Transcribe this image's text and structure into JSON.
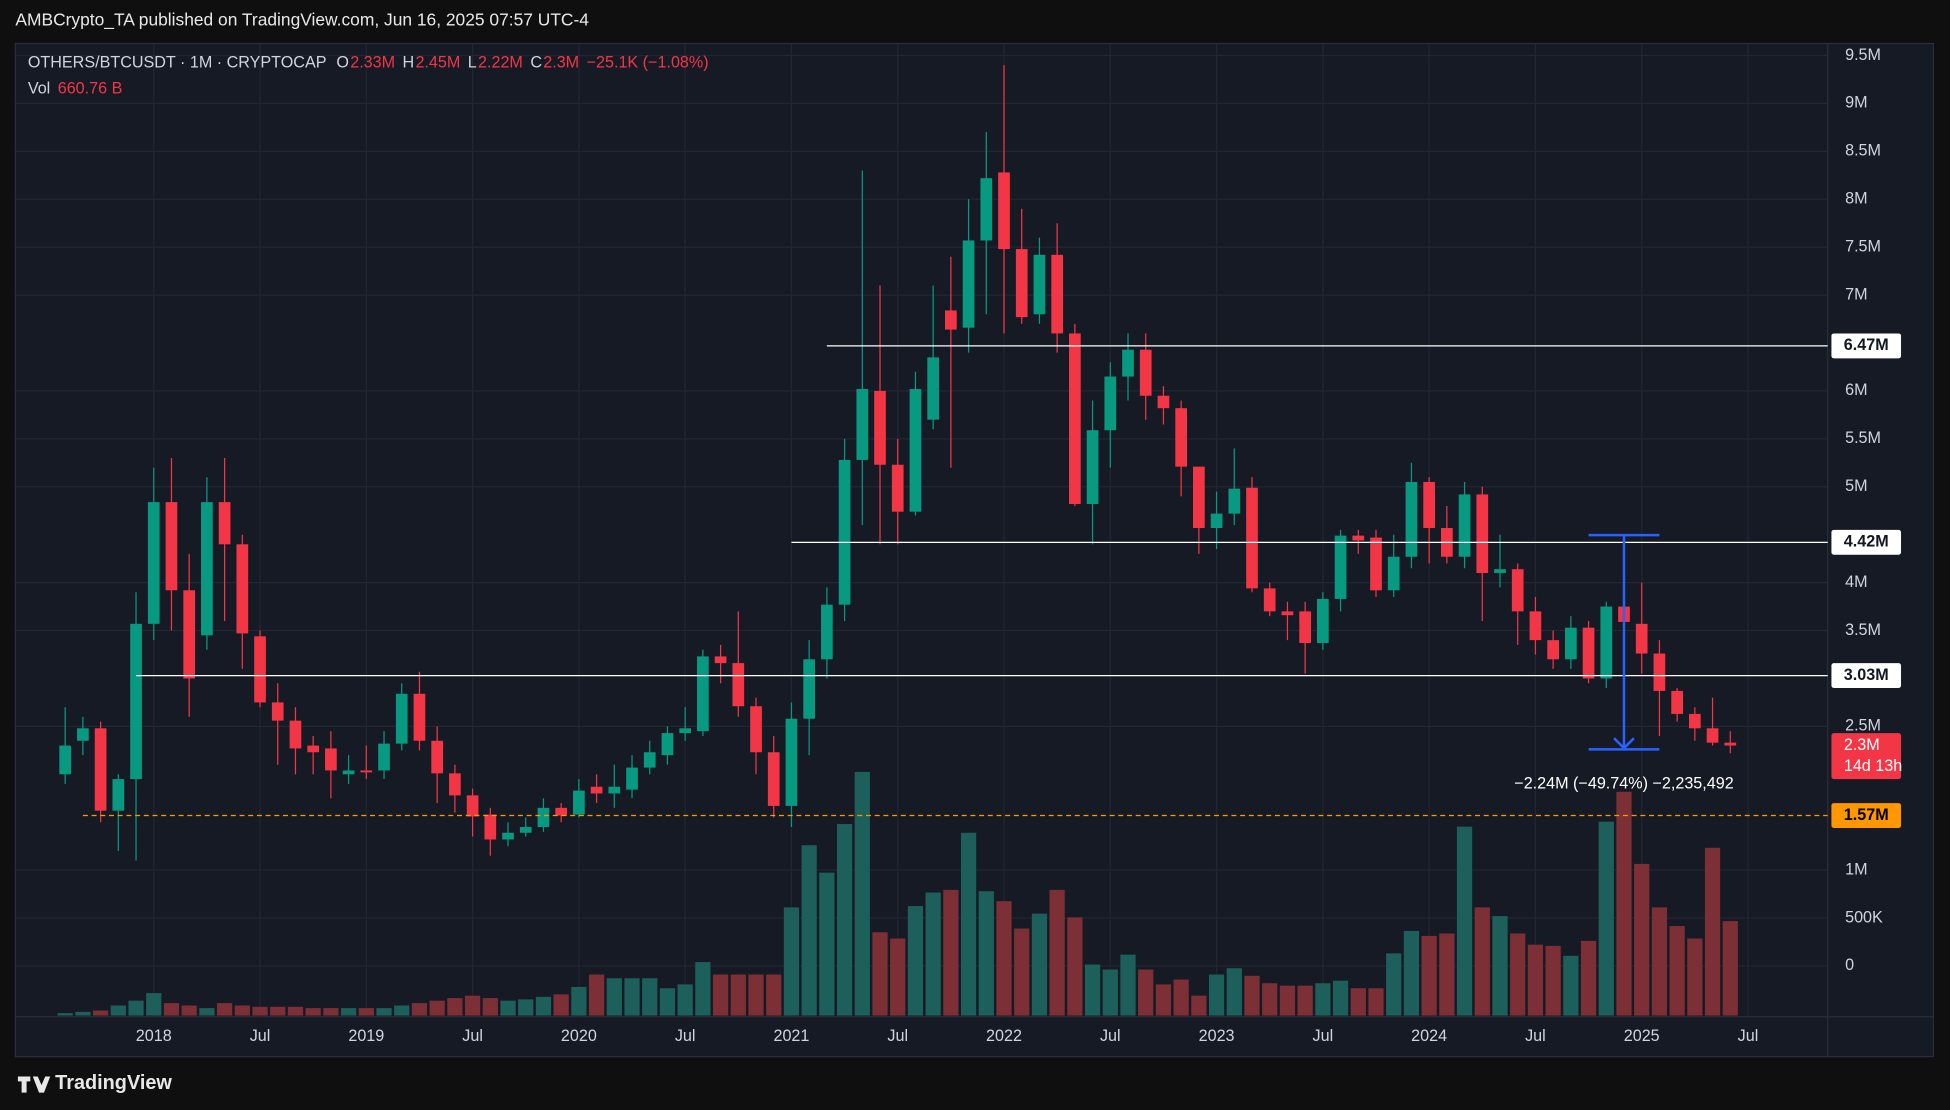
{
  "chart_data": {
    "type": "candlestick",
    "header": "AMBCrypto_TA published on TradingView.com, Jun 16, 2025 07:57 UTC-4",
    "symbol": "OTHERS/BTCUSDT · 1M · CRYPTOCAP",
    "ohlc_legend": [
      {
        "key": "O",
        "value": "2.33M"
      },
      {
        "key": "H",
        "value": "2.45M"
      },
      {
        "key": "L",
        "value": "2.22M"
      },
      {
        "key": "C",
        "value": "2.3M"
      }
    ],
    "change": "−25.1K (−1.08%)",
    "volume_legend": {
      "key": "Vol",
      "value": "660.76 B"
    },
    "open": [
      2.0,
      2.35,
      2.48,
      1.62,
      1.95,
      3.57,
      4.84,
      3.92,
      3.45,
      4.84,
      4.4,
      3.44,
      2.75,
      2.56,
      2.3,
      2.27,
      2.0,
      2.04,
      2.04,
      2.32,
      2.84,
      2.35,
      2.01,
      1.78,
      1.58,
      1.32,
      1.39,
      1.45,
      1.65,
      1.58,
      1.87,
      1.8,
      1.84,
      2.07,
      2.2,
      2.43,
      2.45,
      3.23,
      3.16,
      2.71,
      2.23,
      1.67,
      2.58,
      3.2,
      3.77,
      5.28,
      6.0,
      5.23,
      4.74,
      5.7,
      6.84,
      6.66,
      7.57,
      8.28,
      7.48,
      6.8,
      7.42,
      6.6,
      4.82,
      5.59,
      6.15,
      6.43,
      5.95,
      5.82,
      5.21,
      4.57,
      4.72,
      4.99,
      3.94,
      3.7,
      3.7,
      3.37,
      3.83,
      4.49,
      4.47,
      3.92,
      4.27,
      5.05,
      4.57,
      4.27,
      4.92,
      4.1,
      4.14,
      3.7,
      3.4,
      3.2,
      3.53,
      3.0,
      3.75,
      3.57,
      3.26,
      2.87,
      2.63,
      2.48,
      2.33
    ],
    "high": [
      2.7,
      2.6,
      2.55,
      2.0,
      3.9,
      5.2,
      5.3,
      4.3,
      5.1,
      5.3,
      4.5,
      3.5,
      2.95,
      2.7,
      2.4,
      2.45,
      2.2,
      2.3,
      2.45,
      2.95,
      3.07,
      2.5,
      2.1,
      1.85,
      1.65,
      1.5,
      1.55,
      1.75,
      1.7,
      1.95,
      2.0,
      2.1,
      2.2,
      2.35,
      2.5,
      2.7,
      3.3,
      3.35,
      3.7,
      2.8,
      2.4,
      2.75,
      3.4,
      3.95,
      5.5,
      8.3,
      7.1,
      5.5,
      6.2,
      7.1,
      7.4,
      8.0,
      8.7,
      9.4,
      7.9,
      7.6,
      7.75,
      6.7,
      5.9,
      6.3,
      6.6,
      6.6,
      6.05,
      5.9,
      5.2,
      4.95,
      5.4,
      5.1,
      4.0,
      3.8,
      3.8,
      3.9,
      4.55,
      4.55,
      4.55,
      4.5,
      5.25,
      5.1,
      4.8,
      5.05,
      5.0,
      4.5,
      4.2,
      3.85,
      3.5,
      3.65,
      3.6,
      3.8,
      3.8,
      4.0,
      3.4,
      2.9,
      2.7,
      2.8,
      2.45
    ],
    "low": [
      1.9,
      2.2,
      1.5,
      1.2,
      1.1,
      3.4,
      3.5,
      2.6,
      3.3,
      3.6,
      3.1,
      2.7,
      2.1,
      2.0,
      2.0,
      1.75,
      1.9,
      1.95,
      1.95,
      2.25,
      2.25,
      1.7,
      1.6,
      1.35,
      1.15,
      1.25,
      1.35,
      1.4,
      1.5,
      1.55,
      1.7,
      1.65,
      1.75,
      2.0,
      2.1,
      2.35,
      2.4,
      2.95,
      2.6,
      2.0,
      1.55,
      1.45,
      2.2,
      3.0,
      3.6,
      4.6,
      4.4,
      4.4,
      4.7,
      5.6,
      5.2,
      6.4,
      6.8,
      6.6,
      6.7,
      6.7,
      6.4,
      4.8,
      4.4,
      5.2,
      5.9,
      5.7,
      5.65,
      4.9,
      4.3,
      4.35,
      4.6,
      3.9,
      3.65,
      3.4,
      3.05,
      3.3,
      3.7,
      4.3,
      3.85,
      3.85,
      4.15,
      4.2,
      4.2,
      4.15,
      3.6,
      3.95,
      3.35,
      3.25,
      3.1,
      3.1,
      2.95,
      2.9,
      3.45,
      3.05,
      2.4,
      2.55,
      2.35,
      2.3,
      2.22
    ],
    "close": [
      2.3,
      2.48,
      1.62,
      1.95,
      3.57,
      4.84,
      3.92,
      3.0,
      4.84,
      4.4,
      3.47,
      2.75,
      2.56,
      2.27,
      2.23,
      2.04,
      2.04,
      2.02,
      2.32,
      2.84,
      2.35,
      2.01,
      1.78,
      1.56,
      1.32,
      1.39,
      1.45,
      1.65,
      1.57,
      1.83,
      1.8,
      1.87,
      2.07,
      2.23,
      2.43,
      2.48,
      3.23,
      3.16,
      2.71,
      2.23,
      1.67,
      2.58,
      3.2,
      3.77,
      5.28,
      6.02,
      5.23,
      4.74,
      6.02,
      6.35,
      6.64,
      7.57,
      8.22,
      7.48,
      6.77,
      7.42,
      6.6,
      4.82,
      5.59,
      6.15,
      6.43,
      5.95,
      5.82,
      5.21,
      4.57,
      4.72,
      4.98,
      3.94,
      3.7,
      3.66,
      3.37,
      3.83,
      4.49,
      4.44,
      3.92,
      4.27,
      5.05,
      4.57,
      4.27,
      4.92,
      4.1,
      4.14,
      3.7,
      3.4,
      3.2,
      3.53,
      3.0,
      3.75,
      3.59,
      3.26,
      2.87,
      2.63,
      2.48,
      2.33,
      2.3
    ],
    "volume": [
      17,
      26,
      35,
      70,
      104,
      157,
      87,
      70,
      52,
      87,
      70,
      61,
      61,
      61,
      52,
      52,
      52,
      52,
      52,
      70,
      87,
      104,
      122,
      139,
      122,
      104,
      113,
      131,
      148,
      200,
      287,
      261,
      261,
      261,
      191,
      218,
      374,
      287,
      287,
      287,
      287,
      757,
      1192,
      1000,
      1340,
      1705,
      583,
      539,
      766,
      861,
      879,
      1279,
      870,
      800,
      609,
      713,
      879,
      687,
      357,
      322,
      426,
      322,
      218,
      252,
      139,
      287,
      331,
      278,
      226,
      209,
      209,
      226,
      244,
      191,
      191,
      435,
      592,
      557,
      574,
      1322,
      757,
      696,
      574,
      496,
      487,
      418,
      522,
      1357,
      1566,
      1061,
      757,
      626,
      539,
      1174,
      660.76
    ],
    "up_color": "#089981",
    "down_color": "#f23645",
    "volume_up_color": "#1d5f5b",
    "volume_down_color": "#7c2f35",
    "xlim": [
      -2.81,
      99.5
    ],
    "xticks": [
      {
        "value": 5,
        "label": "2018"
      },
      {
        "value": 11,
        "label": "Jul"
      },
      {
        "value": 17,
        "label": "2019"
      },
      {
        "value": 23,
        "label": "Jul"
      },
      {
        "value": 29,
        "label": "2020"
      },
      {
        "value": 35,
        "label": "Jul"
      },
      {
        "value": 41,
        "label": "2021"
      },
      {
        "value": 47,
        "label": "Jul"
      },
      {
        "value": 53,
        "label": "2022"
      },
      {
        "value": 59,
        "label": "Jul"
      },
      {
        "value": 65,
        "label": "2023"
      },
      {
        "value": 71,
        "label": "Jul"
      },
      {
        "value": 77,
        "label": "2024"
      },
      {
        "value": 83,
        "label": "Jul"
      },
      {
        "value": 89,
        "label": "2025"
      },
      {
        "value": 95,
        "label": "Jul"
      }
    ],
    "ylim": [
      -0.53,
      9.625
    ],
    "yticks": [
      {
        "value": 9.5,
        "label": "9.5M"
      },
      {
        "value": 9,
        "label": "9M"
      },
      {
        "value": 8.5,
        "label": "8.5M"
      },
      {
        "value": 8,
        "label": "8M"
      },
      {
        "value": 7.5,
        "label": "7.5M"
      },
      {
        "value": 7,
        "label": "7M"
      },
      {
        "value": 6,
        "label": "6M"
      },
      {
        "value": 5.5,
        "label": "5.5M"
      },
      {
        "value": 5,
        "label": "5M"
      },
      {
        "value": 4,
        "label": "4M"
      },
      {
        "value": 3.5,
        "label": "3.5M"
      },
      {
        "value": 2.5,
        "label": "2.5M"
      },
      {
        "value": 1,
        "label": "1M"
      },
      {
        "value": 0.5,
        "label": "500K"
      },
      0
    ],
    "grid": true,
    "levels": [
      {
        "value": 6.47,
        "label": "6.47M",
        "start": 43,
        "color": "#ffffff",
        "dashed": false
      },
      {
        "value": 4.42,
        "label": "4.42M",
        "start": 41,
        "color": "#ffffff",
        "dashed": false
      },
      {
        "value": 3.03,
        "label": "3.03M",
        "start": 4,
        "color": "#ffffff",
        "dashed": false
      },
      {
        "value": 1.57,
        "label": "1.57M",
        "start": 1,
        "color": "#ff9800",
        "dashed": true
      }
    ],
    "measure": {
      "index": 88,
      "from": 4.4955,
      "to": 2.26,
      "label": "−2.24M (−49.74%) −2,235,492",
      "color": "#2962ff"
    },
    "last_price": {
      "label": "2.3M",
      "countdown": "14d 13h"
    },
    "brand": "TradingView"
  }
}
